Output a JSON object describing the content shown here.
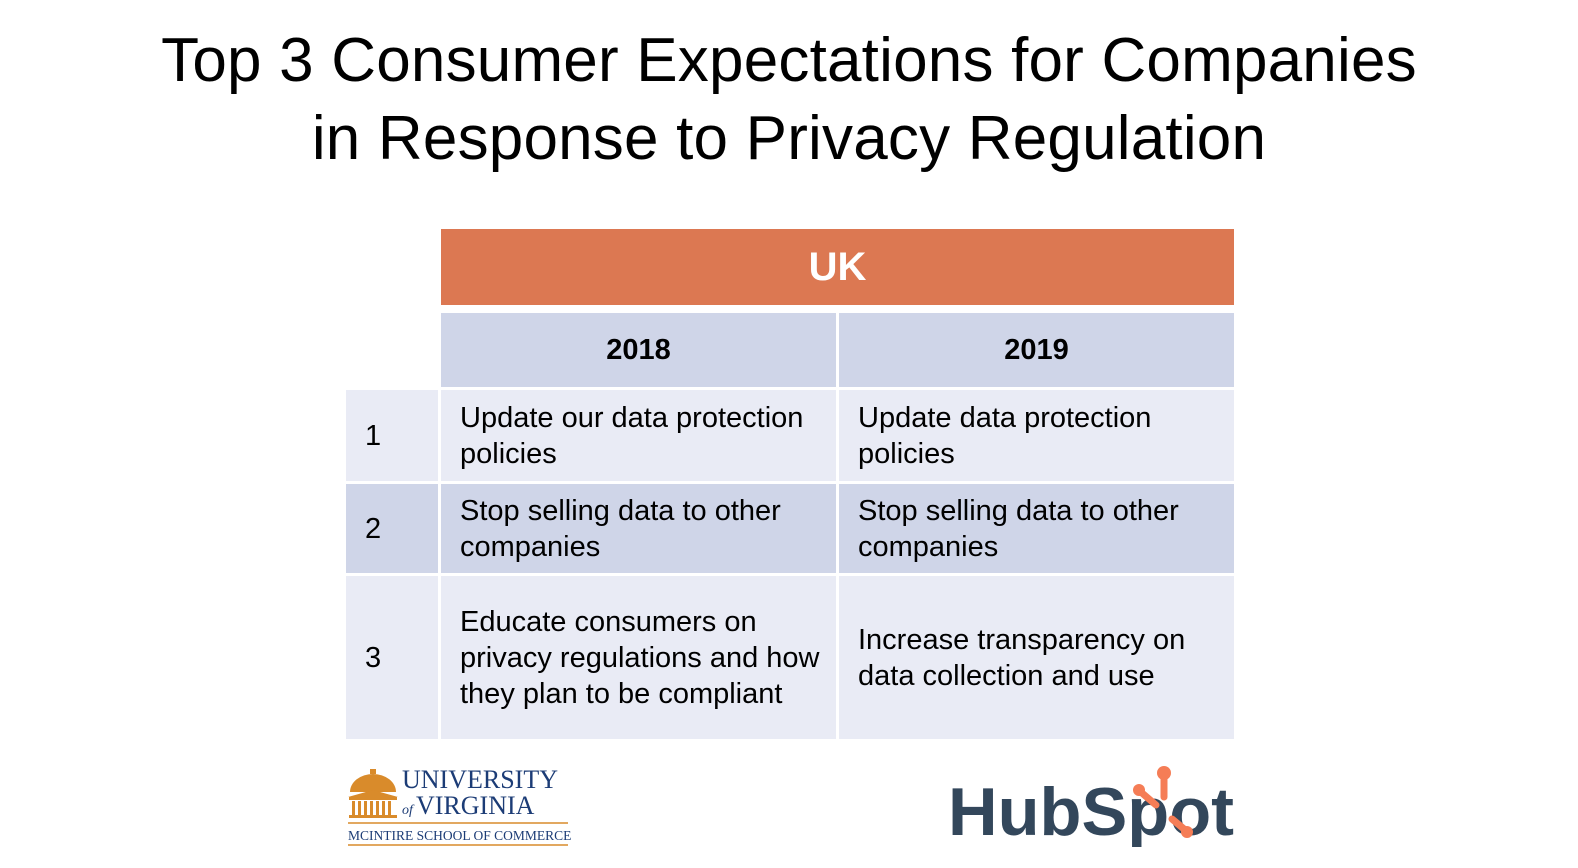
{
  "title": {
    "line1": "Top 3 Consumer Expectations for Companies",
    "line2": "in Response to Privacy Regulation"
  },
  "table": {
    "region": "UK",
    "columns": [
      "2018",
      "2019"
    ],
    "rows": [
      {
        "rank": "1",
        "y2018": "Update our data protection policies",
        "y2019": "Update data protection policies"
      },
      {
        "rank": "2",
        "y2018": "Stop selling data to other companies",
        "y2019": "Stop selling data to other companies"
      },
      {
        "rank": "3",
        "y2018": "Educate consumers on privacy regulations and how they plan to be compliant",
        "y2019": "Increase transparency on data collection and use"
      }
    ]
  },
  "logos": {
    "uva": {
      "line1": "UNIVERSITY",
      "line2": "VIRGINIA",
      "line3": "MCINTIRE SCHOOL OF COMMERCE"
    },
    "hubspot": {
      "text": "HubSpot"
    }
  },
  "colors": {
    "banner": "#dc7852",
    "header_cell": "#cfd5e8",
    "light_row": "#e9ebf5",
    "dark_row": "#cfd5e8",
    "hubspot_text": "#33475b",
    "hubspot_accent": "#f57d56",
    "uva_orange": "#d98b2b",
    "uva_blue": "#1c3c76"
  }
}
